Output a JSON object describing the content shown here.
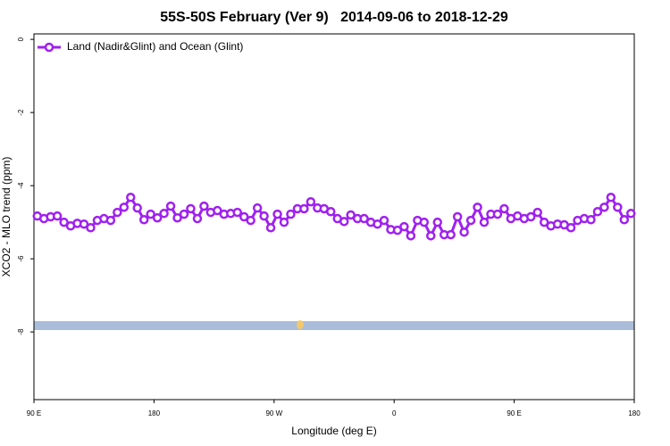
{
  "chart_data": {
    "type": "line",
    "title": "55S-50S February (Ver 9)   2014-09-06 to 2018-12-29",
    "x_label": "Longitude (deg E)",
    "y_label": "XCO2 - MLO trend (ppm)",
    "xlim": [
      90,
      540
    ],
    "xticks": [
      {
        "value": 90,
        "label": "90 E"
      },
      180,
      {
        "value": 270,
        "label": "90 W"
      },
      {
        "value": 360,
        "label": "0"
      },
      {
        "value": 450,
        "label": "90 E"
      },
      {
        "value": 540,
        "label": "180"
      }
    ],
    "ylim": [
      -9.85,
      0.15
    ],
    "yticks": [
      0,
      -2,
      -4,
      -6,
      -8
    ],
    "legend": "top-left",
    "x": [
      92.5,
      97.5,
      102.5,
      107.5,
      112.5,
      117.5,
      122.5,
      127.5,
      132.5,
      137.5,
      142.5,
      147.5,
      152.5,
      157.5,
      162.5,
      167.5,
      172.5,
      177.5,
      182.5,
      187.5,
      192.5,
      197.5,
      202.5,
      207.5,
      212.5,
      217.5,
      222.5,
      227.5,
      232.5,
      237.5,
      242.5,
      247.5,
      252.5,
      257.5,
      262.5,
      267.5,
      272.5,
      277.5,
      282.5,
      287.5,
      292.5,
      297.5,
      302.5,
      307.5,
      312.5,
      317.5,
      322.5,
      327.5,
      332.5,
      337.5,
      342.5,
      347.5,
      352.5,
      357.5,
      362.5,
      367.5,
      372.5,
      377.5,
      382.5,
      387.5,
      392.5,
      397.5,
      402.5,
      407.5,
      412.5,
      417.5,
      422.5,
      427.5,
      432.5,
      437.5,
      442.5,
      447.5,
      452.5,
      457.5,
      462.5,
      467.5,
      472.5,
      477.5,
      482.5,
      487.5,
      492.5,
      497.5,
      502.5,
      507.5,
      512.5,
      517.5,
      522.5,
      527.5,
      532.5,
      537.5
    ],
    "series": [
      {
        "name": "Land (Nadir&Glint) and Ocean (Glint)",
        "color": "#a020f0",
        "values": [
          -4.83,
          -4.9,
          -4.85,
          -4.83,
          -5.0,
          -5.1,
          -5.03,
          -5.05,
          -5.15,
          -4.95,
          -4.9,
          -4.95,
          -4.73,
          -4.59,
          -4.32,
          -4.61,
          -4.93,
          -4.78,
          -4.88,
          -4.76,
          -4.56,
          -4.88,
          -4.78,
          -4.63,
          -4.9,
          -4.56,
          -4.73,
          -4.68,
          -4.78,
          -4.76,
          -4.73,
          -4.85,
          -4.95,
          -4.61,
          -4.83,
          -5.15,
          -4.78,
          -5.0,
          -4.78,
          -4.63,
          -4.63,
          -4.44,
          -4.61,
          -4.63,
          -4.71,
          -4.9,
          -4.98,
          -4.8,
          -4.9,
          -4.9,
          -5.0,
          -5.05,
          -4.95,
          -5.2,
          -5.22,
          -5.12,
          -5.37,
          -4.95,
          -5.0,
          -5.37,
          -5.0,
          -5.34,
          -5.34,
          -4.85,
          -5.27,
          -4.95,
          -4.59,
          -5.0,
          -4.78,
          -4.78,
          -4.63,
          -4.9,
          -4.83,
          -4.9,
          -4.85,
          -4.73,
          -5.0,
          -5.1,
          -5.05,
          -5.07,
          -5.15,
          -4.95,
          -4.9,
          -4.93,
          -4.71,
          -4.59,
          -4.32,
          -4.59,
          -4.93,
          -4.76
        ]
      }
    ]
  }
}
